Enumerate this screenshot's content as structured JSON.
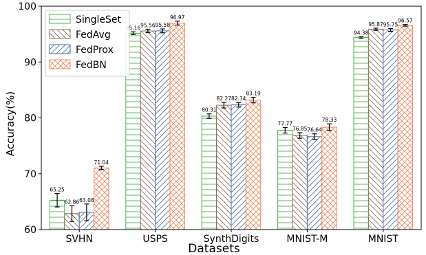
{
  "chart_data": {
    "type": "bar",
    "title": "",
    "xlabel": "Datasets",
    "ylabel": "Accuracy(%)",
    "ylim": [
      60,
      100
    ],
    "yticks": [
      "60",
      "70",
      "80",
      "90",
      "100"
    ],
    "categories": [
      "SVHN",
      "USPS",
      "SynthDigits",
      "MNIST-M",
      "MNIST"
    ],
    "grid": false,
    "legend_position": "top-left",
    "series": [
      {
        "name": "SingleSet",
        "color": "#4daf4a",
        "hatch": "horizontal",
        "values": [
          65.25,
          95.16,
          80.31,
          77.77,
          94.38
        ],
        "labels": [
          "65.25",
          "95.16",
          "80.31",
          "77.77",
          "94.38"
        ],
        "errors": [
          1.2,
          0.25,
          0.4,
          0.5,
          0.15
        ]
      },
      {
        "name": "FedAvg",
        "color": "#8c6d5a",
        "hatch": "backslash",
        "values": [
          62.86,
          95.56,
          82.27,
          76.85,
          95.87
        ],
        "labels": [
          "62.86",
          "95.56",
          "82.27",
          "76.85",
          "95.87"
        ],
        "errors": [
          1.4,
          0.3,
          0.5,
          0.5,
          0.2
        ]
      },
      {
        "name": "FedProx",
        "color": "#4a6fa5",
        "hatch": "slash",
        "values": [
          63.08,
          95.58,
          82.34,
          76.64,
          95.75
        ],
        "labels": [
          "63.08",
          "95.58",
          "82.34",
          "76.64",
          "95.75"
        ],
        "errors": [
          1.5,
          0.35,
          0.4,
          0.5,
          0.25
        ]
      },
      {
        "name": "FedBN",
        "color": "#f08a5d",
        "hatch": "cross",
        "values": [
          71.04,
          96.97,
          83.19,
          78.33,
          96.57
        ],
        "labels": [
          "71.04",
          "96.97",
          "83.19",
          "78.33",
          "96.57"
        ],
        "errors": [
          0.3,
          0.35,
          0.5,
          0.6,
          0.15
        ]
      }
    ]
  }
}
